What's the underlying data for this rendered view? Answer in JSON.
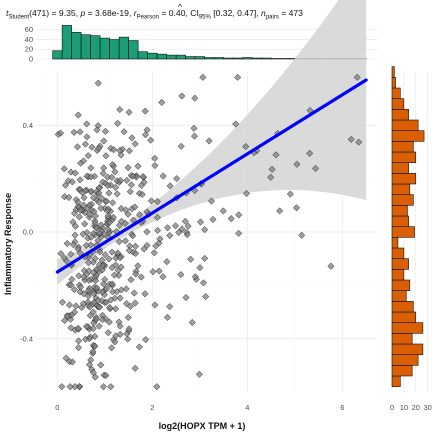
{
  "chart_data": {
    "type": "scatter",
    "subtitle": {
      "t_label": "t",
      "t_sub": "Student",
      "t_value": "(471) = 9.35, ",
      "p_label": "p",
      "p_value": " = 3.68e-19, ",
      "r_label": "r",
      "r_hat": "^",
      "r_sub": "Pearson",
      "r_value": " = 0.40, CI",
      "ci_sub": "95%",
      "ci_value": " [0.32, 0.47], ",
      "n_label": "n",
      "n_sub": "pairs",
      "n_value": " = 473"
    },
    "xlabel": "log2(HOPX TPM + 1)",
    "ylabel": "Inflammatory Response",
    "xlim": [
      -0.45,
      6.75
    ],
    "ylim": [
      -0.6,
      0.6
    ],
    "x_ticks": [
      0,
      2,
      4,
      6
    ],
    "y_ticks": [
      -0.4,
      0.0,
      0.4
    ],
    "x_tick_labels": [
      "0",
      "2",
      "4",
      "6"
    ],
    "y_tick_labels": [
      "-0.4",
      "0.0",
      "0.4"
    ],
    "n_points": 473,
    "fit_line": {
      "x": [
        0.0,
        6.5
      ],
      "y": [
        -0.15,
        0.57
      ],
      "color": "#0000ff"
    },
    "confidence_band": {
      "color": "#d3d3d3"
    },
    "point_color": "#808080",
    "top_histogram": {
      "color": "#1b9e77",
      "y_ticks": [
        0,
        20,
        40,
        60
      ],
      "y_tick_labels": [
        "0",
        "20",
        "40",
        "60"
      ],
      "bins": [
        {
          "x0": -0.1,
          "x1": 0.1,
          "count": 17
        },
        {
          "x0": 0.1,
          "x1": 0.3,
          "count": 69
        },
        {
          "x0": 0.3,
          "x1": 0.5,
          "count": 55
        },
        {
          "x0": 0.5,
          "x1": 0.7,
          "count": 50
        },
        {
          "x0": 0.7,
          "x1": 0.9,
          "count": 48
        },
        {
          "x0": 0.9,
          "x1": 1.1,
          "count": 43
        },
        {
          "x0": 1.1,
          "x1": 1.3,
          "count": 40
        },
        {
          "x0": 1.3,
          "x1": 1.5,
          "count": 45
        },
        {
          "x0": 1.5,
          "x1": 1.7,
          "count": 38
        },
        {
          "x0": 1.7,
          "x1": 1.9,
          "count": 15
        },
        {
          "x0": 1.9,
          "x1": 2.1,
          "count": 12
        },
        {
          "x0": 2.1,
          "x1": 2.3,
          "count": 10
        },
        {
          "x0": 2.3,
          "x1": 2.5,
          "count": 8
        },
        {
          "x0": 2.5,
          "x1": 2.7,
          "count": 8
        },
        {
          "x0": 2.7,
          "x1": 2.9,
          "count": 5
        },
        {
          "x0": 2.9,
          "x1": 3.1,
          "count": 5
        },
        {
          "x0": 3.1,
          "x1": 3.3,
          "count": 3
        },
        {
          "x0": 3.3,
          "x1": 3.5,
          "count": 3
        },
        {
          "x0": 3.5,
          "x1": 3.7,
          "count": 2
        },
        {
          "x0": 3.7,
          "x1": 3.9,
          "count": 2
        },
        {
          "x0": 3.9,
          "x1": 4.1,
          "count": 3
        },
        {
          "x0": 4.1,
          "x1": 4.3,
          "count": 2
        },
        {
          "x0": 4.3,
          "x1": 4.5,
          "count": 2
        },
        {
          "x0": 4.5,
          "x1": 4.7,
          "count": 1
        },
        {
          "x0": 4.7,
          "x1": 4.9,
          "count": 1
        },
        {
          "x0": 4.9,
          "x1": 5.1,
          "count": 1
        },
        {
          "x0": 5.1,
          "x1": 5.3,
          "count": 1
        },
        {
          "x0": 5.3,
          "x1": 5.5,
          "count": 1
        },
        {
          "x0": 5.5,
          "x1": 5.7,
          "count": 1
        },
        {
          "x0": 5.7,
          "x1": 5.9,
          "count": 1
        },
        {
          "x0": 5.9,
          "x1": 6.1,
          "count": 1
        },
        {
          "x0": 6.1,
          "x1": 6.3,
          "count": 1
        },
        {
          "x0": 6.3,
          "x1": 6.5,
          "count": 1
        }
      ]
    },
    "right_histogram": {
      "color": "#d95f02",
      "x_ticks": [
        0,
        10,
        20,
        30
      ],
      "x_tick_labels": [
        "0",
        "10",
        "20",
        "30"
      ],
      "bins": [
        {
          "y0": -0.58,
          "y1": -0.54,
          "count": 7
        },
        {
          "y0": -0.54,
          "y1": -0.5,
          "count": 17
        },
        {
          "y0": -0.5,
          "y1": -0.46,
          "count": 22
        },
        {
          "y0": -0.46,
          "y1": -0.42,
          "count": 26
        },
        {
          "y0": -0.42,
          "y1": -0.38,
          "count": 17
        },
        {
          "y0": -0.38,
          "y1": -0.34,
          "count": 26
        },
        {
          "y0": -0.34,
          "y1": -0.3,
          "count": 20
        },
        {
          "y0": -0.3,
          "y1": -0.26,
          "count": 18
        },
        {
          "y0": -0.26,
          "y1": -0.22,
          "count": 12
        },
        {
          "y0": -0.22,
          "y1": -0.18,
          "count": 15
        },
        {
          "y0": -0.18,
          "y1": -0.14,
          "count": 10
        },
        {
          "y0": -0.14,
          "y1": -0.1,
          "count": 14
        },
        {
          "y0": -0.1,
          "y1": -0.06,
          "count": 10
        },
        {
          "y0": -0.06,
          "y1": -0.02,
          "count": 5
        },
        {
          "y0": -0.02,
          "y1": 0.02,
          "count": 19
        },
        {
          "y0": 0.02,
          "y1": 0.06,
          "count": 14
        },
        {
          "y0": 0.06,
          "y1": 0.1,
          "count": 13
        },
        {
          "y0": 0.1,
          "y1": 0.14,
          "count": 18
        },
        {
          "y0": 0.14,
          "y1": 0.18,
          "count": 15
        },
        {
          "y0": 0.18,
          "y1": 0.22,
          "count": 20
        },
        {
          "y0": 0.22,
          "y1": 0.26,
          "count": 14
        },
        {
          "y0": 0.26,
          "y1": 0.3,
          "count": 20
        },
        {
          "y0": 0.3,
          "y1": 0.34,
          "count": 18
        },
        {
          "y0": 0.34,
          "y1": 0.38,
          "count": 27
        },
        {
          "y0": 0.38,
          "y1": 0.42,
          "count": 22
        },
        {
          "y0": 0.42,
          "y1": 0.46,
          "count": 14
        },
        {
          "y0": 0.46,
          "y1": 0.5,
          "count": 10
        },
        {
          "y0": 0.5,
          "y1": 0.54,
          "count": 7
        },
        {
          "y0": 0.54,
          "y1": 0.58,
          "count": 3
        },
        {
          "y0": 0.58,
          "y1": 0.62,
          "count": 2
        }
      ]
    }
  }
}
